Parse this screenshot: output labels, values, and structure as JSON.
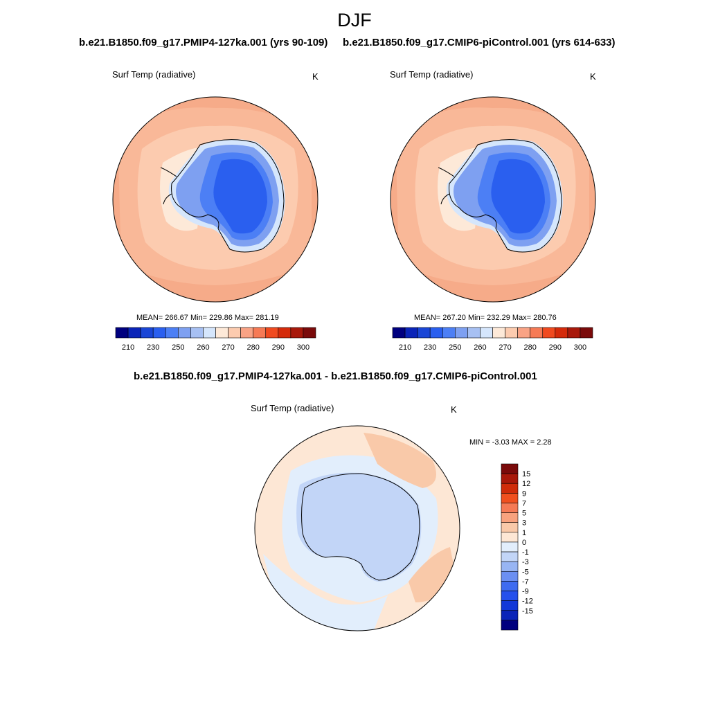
{
  "figure": {
    "title": "DJF"
  },
  "colors": {
    "palette": [
      "#00007f",
      "#0a24b8",
      "#1a46d6",
      "#2a5fef",
      "#4c7ff5",
      "#7ea0f1",
      "#a7c0f3",
      "#d5e6fc",
      "#fde9d8",
      "#fccbaf",
      "#f9a385",
      "#f67a55",
      "#f04a1f",
      "#d42a0a",
      "#a8180a",
      "#7a0a0a"
    ],
    "diff_palette": [
      "#00007f",
      "#0a24b8",
      "#1238d8",
      "#2550ec",
      "#3e6bf0",
      "#6b8ff2",
      "#98b5f3",
      "#c2d5f7",
      "#e2eefc",
      "#fde7d5",
      "#f9c9a9",
      "#f8a27e",
      "#f57a55",
      "#f0501f",
      "#cf2c0a",
      "#a8180a",
      "#7a0a0a"
    ],
    "continent_cold": "#2a52e6",
    "ocean_warm": "#f6ab89"
  },
  "panels": [
    {
      "title": "b.e21.B1850.f09_g17.PMIP4-127ka.001 (yrs 90-109)",
      "variable": "Surf Temp (radiative)",
      "units": "K",
      "stats": "MEAN= 266.67  Min= 229.86  Max= 281.19",
      "colorbar_ticks": [
        "210",
        "230",
        "250",
        "260",
        "270",
        "280",
        "290",
        "300"
      ]
    },
    {
      "title": "b.e21.B1850.f09_g17.CMIP6-piControl.001 (yrs 614-633)",
      "variable": "Surf Temp (radiative)",
      "units": "K",
      "stats": "MEAN= 267.20  Min= 232.29  Max= 280.76",
      "colorbar_ticks": [
        "210",
        "230",
        "250",
        "260",
        "270",
        "280",
        "290",
        "300"
      ]
    },
    {
      "title": "b.e21.B1850.f09_g17.PMIP4-127ka.001 - b.e21.B1850.f09_g17.CMIP6-piControl.001",
      "variable": "Surf Temp (radiative)",
      "units": "K",
      "stats": "MIN =  -3.03 MAX =   2.28",
      "colorbar_ticks": [
        "15",
        "12",
        "9",
        "7",
        "5",
        "3",
        "1",
        "0",
        "-1",
        "-3",
        "-5",
        "-7",
        "-9",
        "-12",
        "-15"
      ]
    }
  ]
}
